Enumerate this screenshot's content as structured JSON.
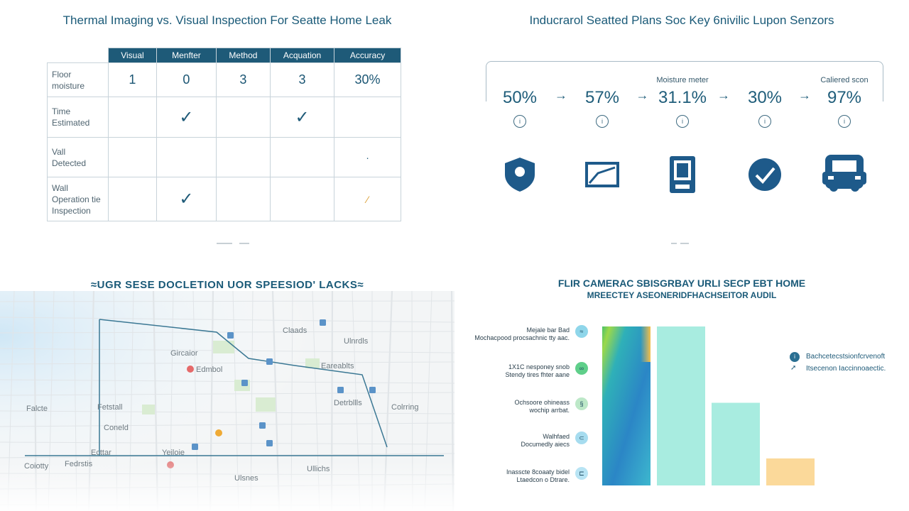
{
  "panel1": {
    "title": "Thermal Imaging vs. Visual Inspection For Seatte Home Leak",
    "columns": [
      "Visual",
      "Menfter",
      "Method",
      "Acquation",
      "Accuracy"
    ],
    "rows": [
      {
        "label": [
          "Floor",
          "moisture"
        ],
        "cells": [
          "1",
          "0",
          "3",
          "3",
          "30%"
        ]
      },
      {
        "label": [
          "Time",
          "Estimated"
        ],
        "cells": [
          "",
          "check",
          "",
          "check",
          ""
        ]
      },
      {
        "label": [
          "Vall",
          "Detected"
        ],
        "cells": [
          "",
          "",
          "",
          "",
          "dot"
        ]
      },
      {
        "label": [
          "Wall",
          "Operation tie",
          "Inspection"
        ],
        "cells": [
          "",
          "check",
          "",
          "",
          "check-orange"
        ]
      }
    ]
  },
  "panel2": {
    "title": "Inducrarol Seatted Plans Soc Key 6nivilic Lupon Senzors",
    "steps": [
      {
        "value": "50%",
        "caption": "",
        "icon": "shield-pin-icon"
      },
      {
        "value": "57%",
        "caption": "",
        "icon": "chart-trend-icon"
      },
      {
        "value": "31.1%",
        "caption": "Moisture meter",
        "icon": "sensor-device-icon"
      },
      {
        "value": "30%",
        "caption": "",
        "icon": "check-circle-icon"
      },
      {
        "value": "97%",
        "caption": "Caliered scon",
        "icon": "van-icon"
      }
    ],
    "info_glyph": "i",
    "arrow_glyph": "→"
  },
  "panel3": {
    "title": "≈UGR SESE DOCLETION UOR SPEESIOD' LACKS≈",
    "labels": [
      "Claads",
      "Ulnrdls",
      "Gircaior",
      "Eareablts",
      "Edmbol",
      "Detrbllls",
      "Colrring",
      "Falcte",
      "Fetstall",
      "Coneld",
      "Ecttar",
      "Yeiloie",
      "Coiotty",
      "Fedrstis",
      "Ullichs",
      "Ulsnes"
    ]
  },
  "panel4": {
    "title_line1": "FLIR CAMERAC SBISGRBAY URLI SECP EBT HOME",
    "title_line2": "MREECTEY ASEONERIDFHACHSEITOR AUDIL",
    "legend_left": [
      {
        "text": [
          "Mejale bar Bad",
          "Mochacpood procsachnic tty aac."
        ]
      },
      {
        "text": [
          "1X1C nesponey snob",
          "Stendy tires fhter aane"
        ]
      },
      {
        "text": [
          "Ochsoore ohineass",
          "wochip arrbat."
        ]
      },
      {
        "text": [
          "Walhfaed",
          "Documedly aiecs"
        ]
      },
      {
        "text": [
          "Inasscte 8coaaty bidel",
          "Ltaedcon o Dtrare."
        ]
      }
    ],
    "legend_right": [
      "Bachcetecstsionfcrvenoft",
      "Itsecenon Iaccinnoaectic."
    ],
    "colors": {
      "thermal": "#2b7fc0",
      "mint": "#a8ece0",
      "sand": "#fbd99a"
    }
  },
  "chart_data": {
    "type": "bar",
    "categories": [
      "",
      "",
      "",
      ""
    ],
    "values": [
      100,
      100,
      52,
      17
    ],
    "ylim": [
      0,
      100
    ],
    "grid": false,
    "legend": "left"
  }
}
